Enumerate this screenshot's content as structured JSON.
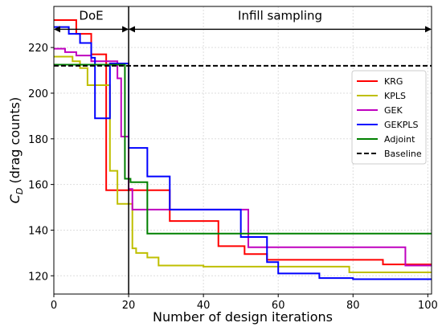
{
  "chart_data": {
    "type": "step",
    "xlabel": "Number of design iterations",
    "ylabel_parts": [
      "C",
      "D",
      " (drag counts)"
    ],
    "xlim": [
      0,
      101
    ],
    "ylim": [
      112,
      238
    ],
    "xticks": [
      0,
      20,
      40,
      60,
      80,
      100
    ],
    "yticks": [
      120,
      140,
      160,
      180,
      200,
      220
    ],
    "grid": true,
    "legend": "upper right",
    "vline": 20,
    "annotations": [
      {
        "text": "DoE",
        "x_start": 0,
        "x_end": 20,
        "y": 228
      },
      {
        "text": "Infill sampling",
        "x_start": 20,
        "x_end": 101,
        "y": 228
      }
    ],
    "series": [
      {
        "name": "KRG",
        "color": "#ff0000",
        "linestyle": "solid",
        "x": [
          0,
          6,
          10,
          14,
          31,
          44,
          51,
          57,
          88
        ],
        "values": [
          232,
          226,
          217,
          157.5,
          144,
          133,
          129.5,
          127,
          125
        ]
      },
      {
        "name": "KPLS",
        "color": "#bfbf00",
        "linestyle": "solid",
        "x": [
          0,
          5,
          7,
          9,
          15,
          17,
          21,
          22,
          25,
          28,
          40,
          79
        ],
        "values": [
          216,
          214,
          211,
          203.5,
          166,
          151.5,
          132,
          130,
          128,
          124.5,
          124,
          121.5
        ]
      },
      {
        "name": "GEK",
        "color": "#bf00bf",
        "linestyle": "solid",
        "x": [
          0,
          3,
          6,
          10,
          17,
          18,
          20,
          21,
          52,
          94
        ],
        "values": [
          219.5,
          218,
          216.5,
          214,
          206.5,
          181,
          158,
          149,
          132.5,
          124.5
        ]
      },
      {
        "name": "GEKPLS",
        "color": "#0000ff",
        "linestyle": "solid",
        "x": [
          0,
          4,
          7,
          10,
          11,
          15,
          20,
          25,
          31,
          50,
          57,
          60,
          71,
          80
        ],
        "values": [
          229,
          226,
          222,
          215.5,
          189,
          213,
          176,
          163.5,
          149,
          137,
          126,
          121,
          119,
          118.5
        ]
      },
      {
        "name": "Adjoint",
        "color": "#008000",
        "linestyle": "solid",
        "x": [
          0,
          19,
          20.5,
          25
        ],
        "values": [
          212.5,
          162.5,
          161,
          138.5
        ]
      },
      {
        "name": "Baseline",
        "color": "#000000",
        "linestyle": "dashed",
        "x": [
          0
        ],
        "values": [
          212
        ]
      }
    ]
  }
}
